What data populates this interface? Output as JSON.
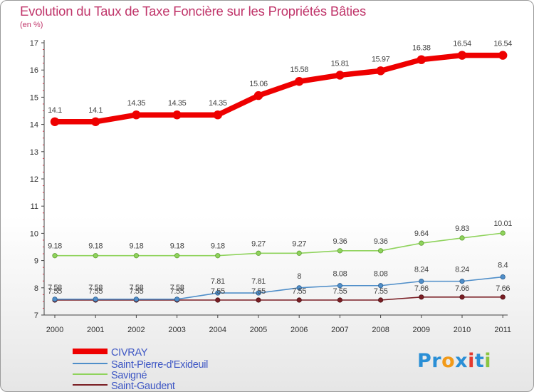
{
  "header": {
    "title": "Evolution du Taux de Taxe Foncière sur les Propriétés Bâties",
    "unit": "(en %)"
  },
  "logo": {
    "parts": [
      "Pr",
      "o",
      "x",
      "i",
      "t",
      "i"
    ],
    "colors": [
      "#2a8fd6",
      "#f29a18",
      "#2a8fd6",
      "#e43a2f",
      "#2a8fd6",
      "#8bc540"
    ]
  },
  "chart_data": {
    "type": "line",
    "title": "Evolution du Taux de Taxe Foncière sur les Propriétés Bâties",
    "ylabel": "(en %)",
    "xlabel": "",
    "ylim": [
      7,
      17
    ],
    "yticks": [
      "7",
      "8",
      "9",
      "10",
      "11",
      "12",
      "13",
      "14",
      "15",
      "16",
      "17"
    ],
    "categories": [
      "2000",
      "2001",
      "2002",
      "2003",
      "2004",
      "2005",
      "2006",
      "2007",
      "2008",
      "2009",
      "2010",
      "2011"
    ],
    "series": [
      {
        "name": "CIVRAY",
        "color": "#ee0000",
        "values": [
          14.1,
          14.1,
          14.35,
          14.35,
          14.35,
          15.06,
          15.58,
          15.81,
          15.97,
          16.38,
          16.54,
          16.54
        ],
        "labels": [
          "14.1",
          "14.1",
          "14.35",
          "14.35",
          "14.35",
          "15.06",
          "15.58",
          "15.81",
          "15.97",
          "16.38",
          "16.54",
          "16.54"
        ]
      },
      {
        "name": "Saint-Pierre-d'Exideuil",
        "color": "#4f8ec9",
        "values": [
          7.58,
          7.58,
          7.58,
          7.58,
          7.81,
          7.81,
          8,
          8.08,
          8.08,
          8.24,
          8.24,
          8.4
        ],
        "labels": [
          "7.58",
          "7.58",
          "7.58",
          "7.58",
          "7.81",
          "7.81",
          "8",
          "8.08",
          "8.08",
          "8.24",
          "8.24",
          "8.4"
        ]
      },
      {
        "name": "Savigné",
        "color": "#8fd35c",
        "values": [
          9.18,
          9.18,
          9.18,
          9.18,
          9.18,
          9.27,
          9.27,
          9.36,
          9.36,
          9.64,
          9.83,
          10.01
        ],
        "labels": [
          "9.18",
          "9.18",
          "9.18",
          "9.18",
          "9.18",
          "9.27",
          "9.27",
          "9.36",
          "9.36",
          "9.64",
          "9.83",
          "10.01"
        ]
      },
      {
        "name": "Saint-Gaudent",
        "color": "#7a1e24",
        "values": [
          7.55,
          7.55,
          7.55,
          7.55,
          7.55,
          7.55,
          7.55,
          7.55,
          7.55,
          7.66,
          7.66,
          7.66
        ],
        "labels": [
          "7.55",
          "7.55",
          "7.55",
          "7.55",
          "7.55",
          "7.55",
          "7.55",
          "7.55",
          "7.55",
          "7.66",
          "7.66",
          "7.66"
        ]
      }
    ],
    "legend": [
      "CIVRAY",
      "Saint-Pierre-d'Exideuil",
      "Savigné",
      "Saint-Gaudent"
    ],
    "legend_position": "bottom-left",
    "grid": false
  }
}
